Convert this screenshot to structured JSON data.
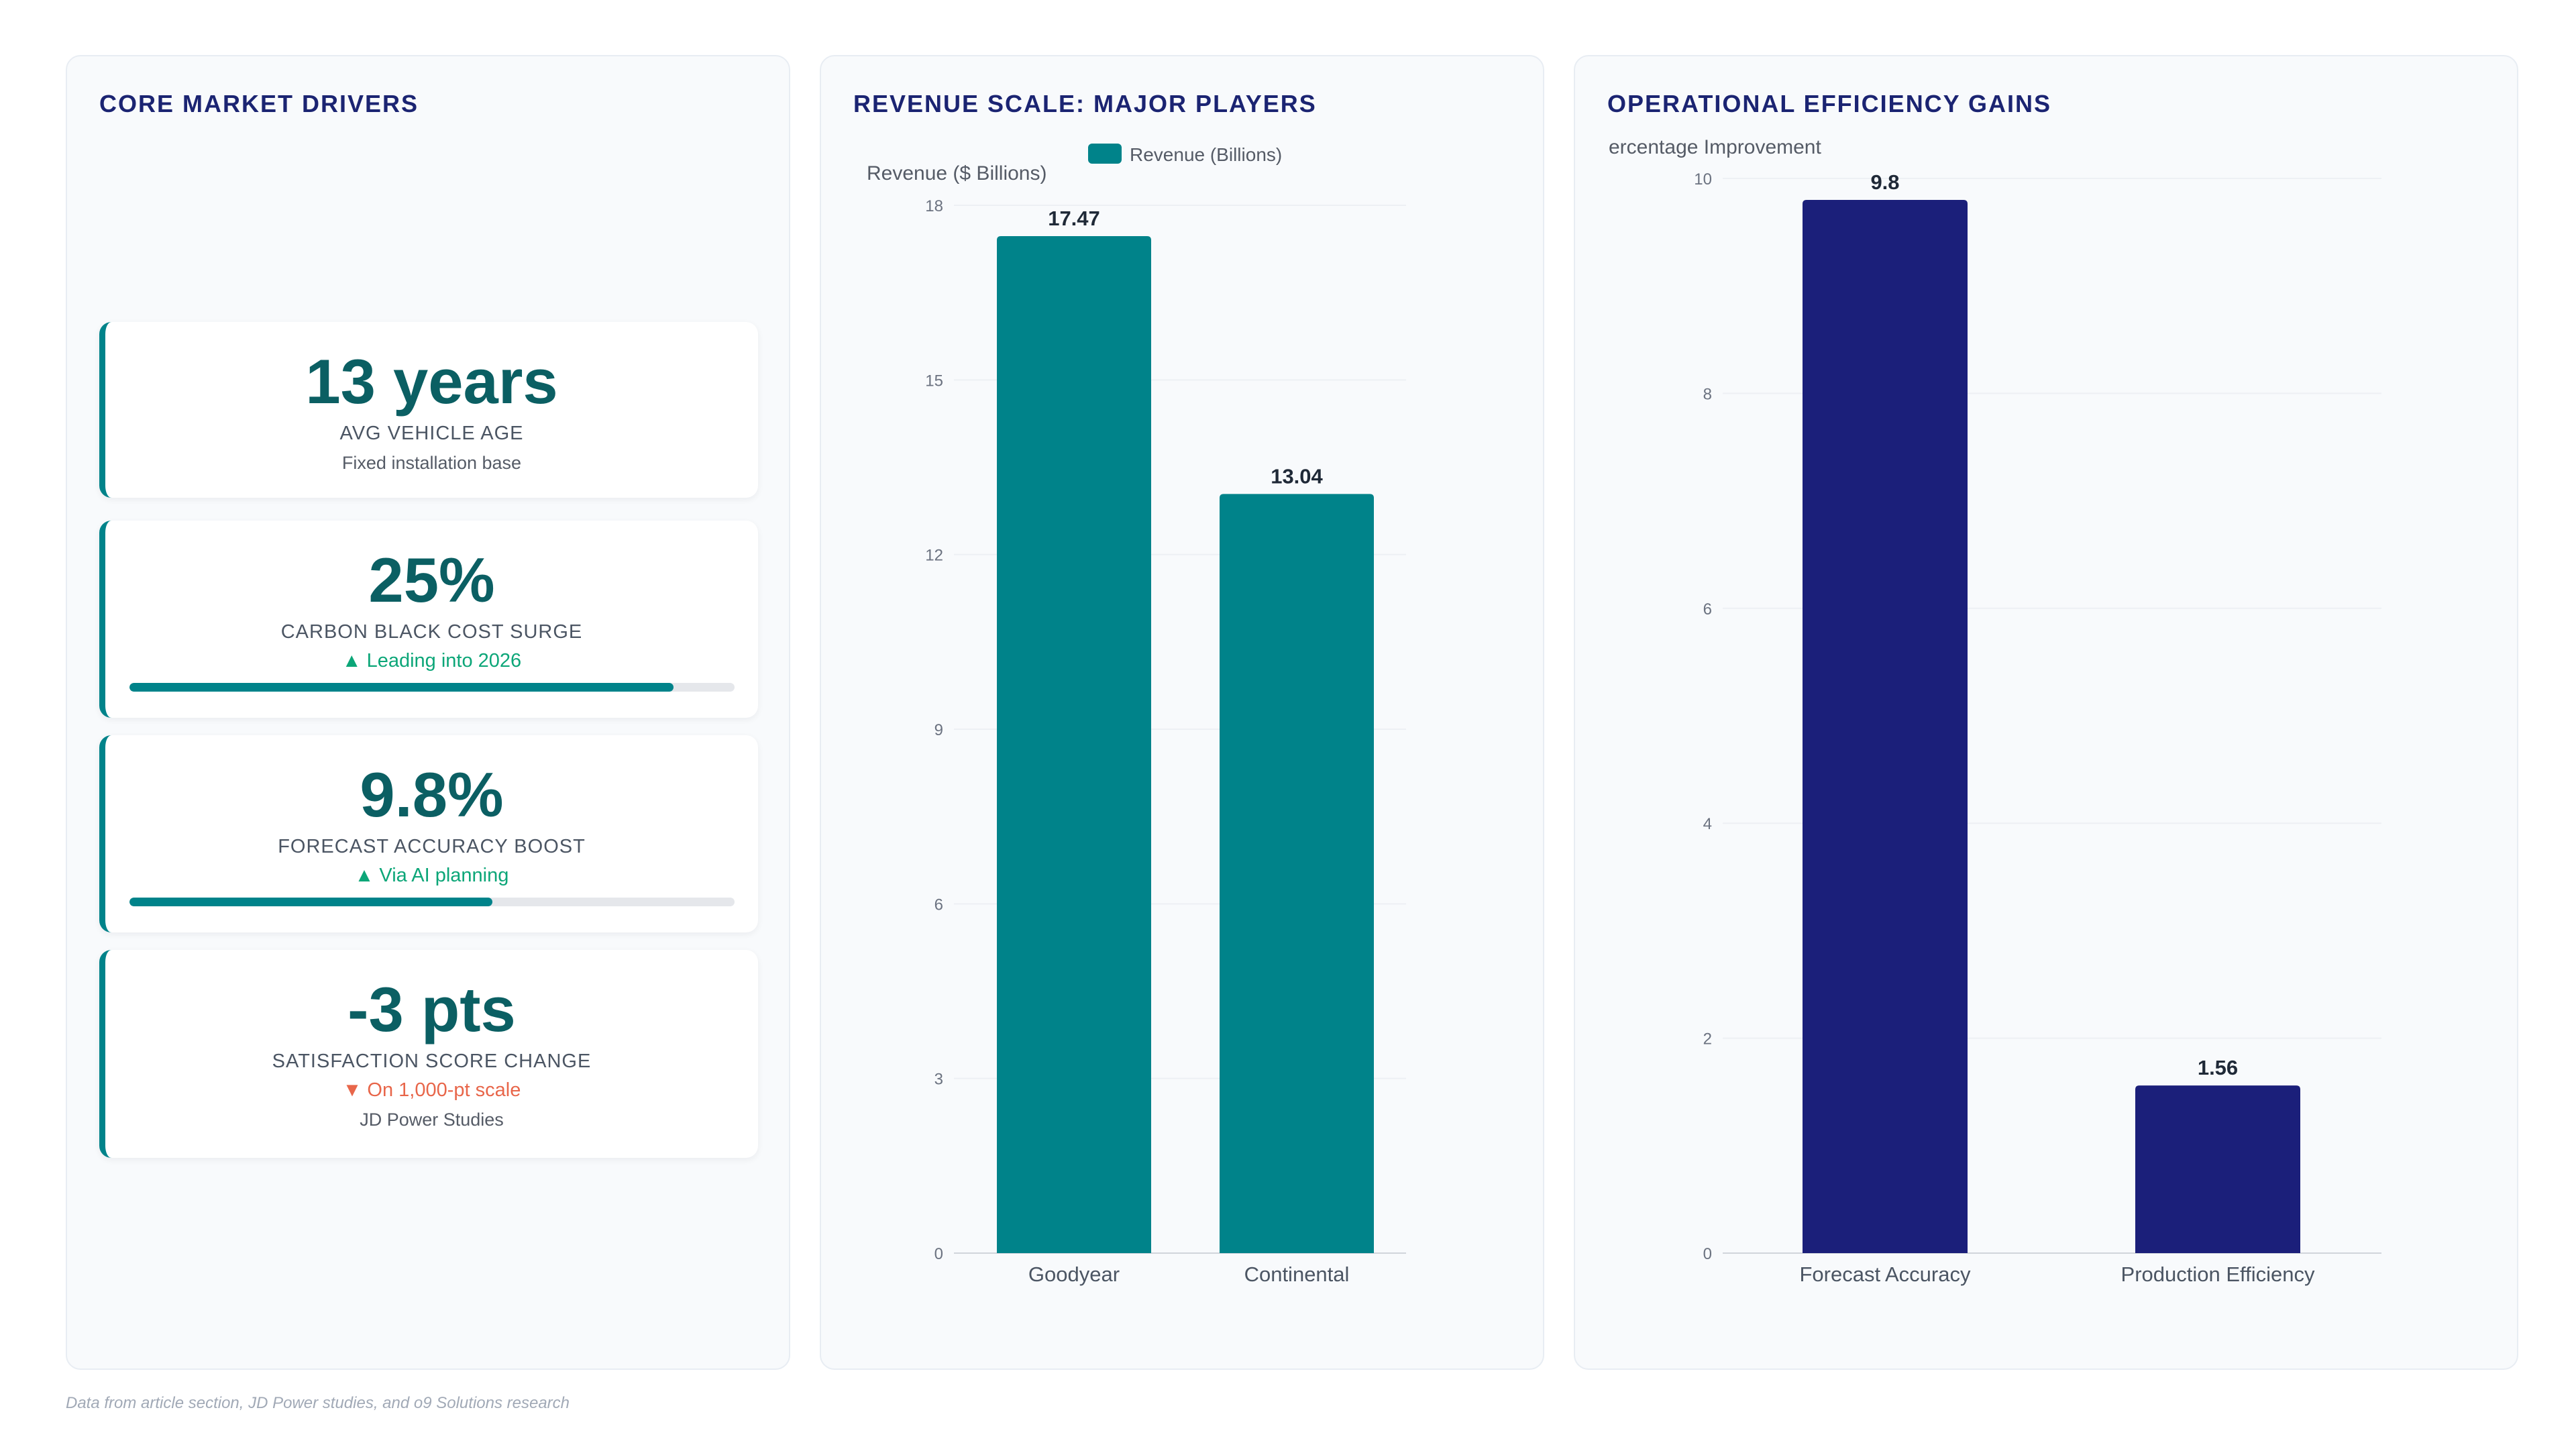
{
  "panels": {
    "drivers": {
      "title": "CORE MARKET DRIVERS",
      "kpis": [
        {
          "value": "13 years",
          "label": "AVG VEHICLE AGE",
          "note": "Fixed installation base"
        },
        {
          "value": "25%",
          "label": "CARBON BLACK COST SURGE",
          "trend": "▲ Leading into 2026",
          "trend_dir": "up",
          "progress": 0.9
        },
        {
          "value": "9.8%",
          "label": "FORECAST ACCURACY BOOST",
          "trend": "▲ Via AI planning",
          "trend_dir": "up",
          "progress": 0.6
        },
        {
          "value": "-3 pts",
          "label": "SATISFACTION SCORE CHANGE",
          "trend": "▼ On 1,000-pt scale",
          "trend_dir": "down",
          "note": "JD Power Studies"
        }
      ]
    },
    "revenue": {
      "title": "REVENUE SCALE: MAJOR PLAYERS"
    },
    "efficiency": {
      "title": "OPERATIONAL EFFICIENCY GAINS"
    }
  },
  "chart_data": [
    {
      "type": "bar",
      "title": "REVENUE SCALE: MAJOR PLAYERS",
      "categories": [
        "Goodyear",
        "Continental"
      ],
      "series": [
        {
          "name": "Revenue (Billions)",
          "values": [
            17.47,
            13.04
          ]
        }
      ],
      "ylabel": "Revenue ($ Billions)",
      "ylim": [
        0,
        18
      ],
      "yticks": [
        0,
        3,
        6,
        9,
        12,
        15,
        18
      ],
      "grid": true,
      "legend": "top-center",
      "data_labels": [
        "17.47",
        "13.04"
      ],
      "color": "#00838a"
    },
    {
      "type": "bar",
      "title": "OPERATIONAL EFFICIENCY GAINS",
      "categories": [
        "Forecast Accuracy",
        "Production Efficiency"
      ],
      "series": [
        {
          "values": [
            9.8,
            1.56
          ]
        }
      ],
      "ylabel": "ercentage Improvement",
      "ylim": [
        0,
        10
      ],
      "yticks": [
        0,
        2,
        4,
        6,
        8,
        10
      ],
      "grid": true,
      "data_labels": [
        "9.8",
        "1.56"
      ],
      "color": "#1b1f7a"
    }
  ],
  "footer": {
    "source": "Data from article section, JD Power studies, and o9 Solutions research"
  }
}
